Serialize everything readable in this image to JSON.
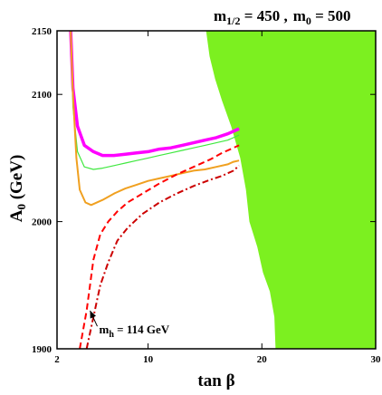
{
  "chart_data": {
    "type": "line",
    "title": "m1/2 = 450 ,  m0 = 500",
    "title_parts": {
      "m_half_symbol": "m",
      "m_half_sub": "1/2",
      "m_half_value": " = 450 ,",
      "m0_symbol": "m",
      "m0_sub": "0",
      "m0_value": " = 500"
    },
    "xlabel": "tan β",
    "ylabel": "A0 (GeV)",
    "ylabel_parts": {
      "symbol": "A",
      "sub": "0",
      "unit": " (GeV)"
    },
    "xlim": [
      2,
      30
    ],
    "ylim": [
      1900,
      2150
    ],
    "xticks": [
      2,
      10,
      20,
      30
    ],
    "yticks": [
      1900,
      2000,
      2100,
      2150
    ],
    "grid": false,
    "legend": "none",
    "excluded_region": {
      "color": "#7cf020",
      "boundary": [
        [
          15.1,
          2150
        ],
        [
          15.4,
          2130
        ],
        [
          15.9,
          2112
        ],
        [
          16.5,
          2095
        ],
        [
          17.3,
          2075
        ],
        [
          18.1,
          2050
        ],
        [
          18.6,
          2025
        ],
        [
          18.9,
          2000
        ],
        [
          19.6,
          1980
        ],
        [
          20.1,
          1960
        ],
        [
          20.7,
          1945
        ],
        [
          21.1,
          1925
        ],
        [
          21.2,
          1900
        ]
      ]
    },
    "series": [
      {
        "color": "#ff00ff",
        "style": "solid",
        "width": 3.5,
        "x": [
          3.2,
          3.4,
          3.8,
          4.4,
          5.2,
          6,
          7,
          8,
          9,
          10,
          11,
          12,
          13,
          14,
          15,
          16,
          17,
          17.5,
          18
        ],
        "y": [
          2150,
          2105,
          2075,
          2060,
          2055,
          2052,
          2052,
          2053,
          2054,
          2055,
          2057,
          2058,
          2060,
          2062,
          2064,
          2066,
          2069,
          2071,
          2073
        ]
      },
      {
        "color": "#40e840",
        "style": "solid",
        "width": 1.2,
        "x": [
          3.2,
          3.4,
          3.8,
          4.4,
          5.2,
          6,
          7,
          8,
          9,
          10,
          11,
          12,
          13,
          14,
          15,
          16,
          17,
          17.5,
          18
        ],
        "y": [
          2150,
          2090,
          2055,
          2043,
          2041,
          2042,
          2044,
          2046,
          2048,
          2050,
          2052,
          2054,
          2056,
          2058,
          2060,
          2062,
          2064,
          2066,
          2068
        ]
      },
      {
        "color": "#f0a020",
        "style": "solid",
        "width": 2,
        "x": [
          3.2,
          3.4,
          3.7,
          4,
          4.5,
          5,
          6,
          7,
          8,
          9,
          10,
          11,
          12,
          13,
          14,
          15,
          16,
          17,
          17.5,
          18
        ],
        "y": [
          2150,
          2100,
          2050,
          2025,
          2015,
          2013,
          2017,
          2022,
          2026,
          2029,
          2032,
          2034,
          2036,
          2038,
          2040,
          2041,
          2043,
          2045,
          2047,
          2048
        ]
      },
      {
        "color": "#ff0000",
        "style": "dashed",
        "width": 2,
        "x": [
          4,
          4.6,
          5.2,
          5.8,
          6.5,
          7.3,
          8.2,
          9.5,
          11,
          12.5,
          14,
          15.5,
          16.5,
          17.5,
          18
        ],
        "y": [
          1900,
          1930,
          1970,
          1990,
          2000,
          2008,
          2015,
          2022,
          2030,
          2037,
          2043,
          2049,
          2054,
          2058,
          2060
        ]
      },
      {
        "color": "#cc0000",
        "style": "dashdot",
        "width": 2,
        "x": [
          4.6,
          5.2,
          5.8,
          6.5,
          7.3,
          8.2,
          9.5,
          11,
          12.5,
          14,
          15.5,
          16.5,
          17.5,
          18
        ],
        "y": [
          1900,
          1925,
          1950,
          1968,
          1985,
          1995,
          2006,
          2015,
          2022,
          2028,
          2033,
          2036,
          2040,
          2044
        ]
      }
    ],
    "annotations": [
      {
        "text": "mh = 114 GeV",
        "parts": {
          "symbol": "m",
          "sub": "h",
          "value": " = 114 GeV"
        },
        "text_pos": [
          5.7,
          1912
        ],
        "arrow_to": [
          4.9,
          1930
        ]
      }
    ]
  }
}
